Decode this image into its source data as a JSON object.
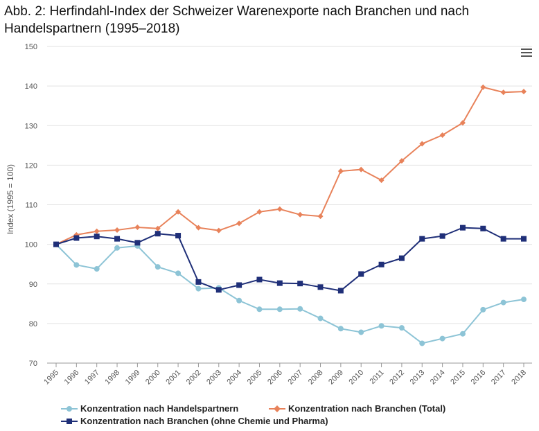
{
  "title": "Abb. 2:  Herfindahl-Index der Schweizer Warenexporte nach Branchen und nach Handelspartnern (1995–2018)",
  "chart_data": {
    "type": "line",
    "ylabel": "Index (1995 = 100)",
    "ylim": [
      70,
      150
    ],
    "yticks": [
      70,
      80,
      90,
      100,
      110,
      120,
      130,
      140,
      150
    ],
    "x": [
      "1995",
      "1996",
      "1997",
      "1998",
      "1999",
      "2000",
      "2001",
      "2002",
      "2003",
      "2004",
      "2005",
      "2006",
      "2007",
      "2008",
      "2009",
      "2010",
      "2011",
      "2012",
      "2013",
      "2014",
      "2015",
      "2016",
      "2017",
      "2018"
    ],
    "grid": true,
    "legend_position": "bottom",
    "series": [
      {
        "name": "Konzentration nach Handelspartnern",
        "color": "#8dc4d6",
        "marker": "circle",
        "values": [
          100,
          94.8,
          93.8,
          99.1,
          99.6,
          94.3,
          92.7,
          88.8,
          89.0,
          85.8,
          83.6,
          83.6,
          83.7,
          81.3,
          78.7,
          77.8,
          79.4,
          78.9,
          75.0,
          76.2,
          77.4,
          83.5,
          85.3,
          86.1
        ]
      },
      {
        "name": "Konzentration nach Branchen (Total)",
        "color": "#e8825a",
        "marker": "diamond",
        "values": [
          100,
          102.4,
          103.3,
          103.6,
          104.3,
          104.0,
          108.2,
          104.2,
          103.5,
          105.3,
          108.2,
          108.9,
          107.5,
          107.1,
          118.5,
          118.9,
          116.2,
          121.1,
          125.4,
          127.6,
          130.7,
          139.7,
          138.4,
          138.6
        ]
      },
      {
        "name": "Konzentration nach Branchen (ohne Chemie und Pharma)",
        "color": "#1f2f78",
        "marker": "square",
        "values": [
          100,
          101.6,
          102.0,
          101.4,
          100.4,
          102.7,
          102.2,
          90.5,
          88.5,
          89.7,
          91.1,
          90.2,
          90.1,
          89.2,
          88.3,
          92.5,
          94.9,
          96.5,
          101.4,
          102.1,
          104.2,
          104.0,
          101.4,
          101.4
        ]
      }
    ]
  }
}
